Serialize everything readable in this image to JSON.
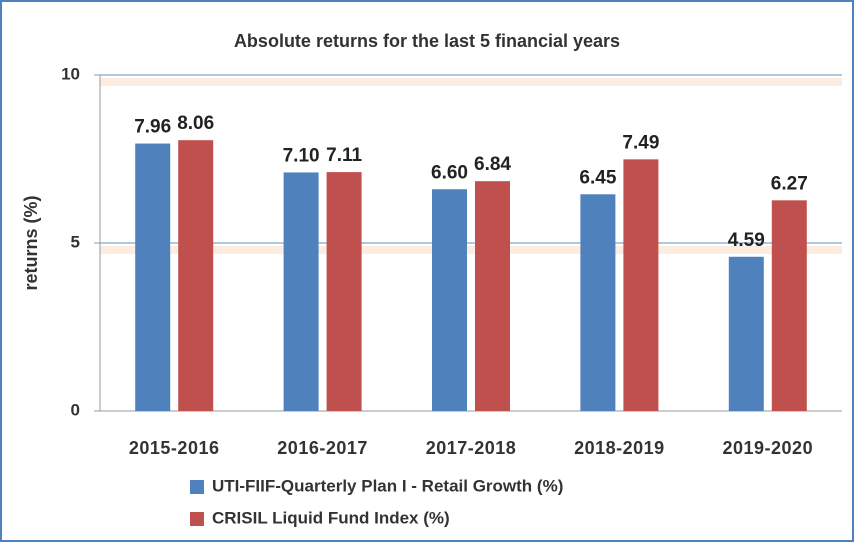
{
  "chart_data": {
    "type": "bar",
    "title": "Absolute returns for the last 5 financial years",
    "y_label": "returns (%)",
    "categories": [
      "2015-2016",
      "2016-2017",
      "2017-2018",
      "2018-2019",
      "2019-2020"
    ],
    "series": [
      {
        "name": "UTI-FIIF-Quarterly Plan I - Retail Growth (%)",
        "color": "#4f81bd",
        "values": [
          7.96,
          7.1,
          6.6,
          6.45,
          4.59
        ],
        "value_labels": [
          "7.96",
          "7.10",
          "6.60",
          "6.45",
          "4.59"
        ]
      },
      {
        "name": "CRISIL Liquid Fund Index (%)",
        "color": "#c0504d",
        "values": [
          8.06,
          7.11,
          6.84,
          7.49,
          6.27
        ],
        "value_labels": [
          "8.06",
          "7.11",
          "6.84",
          "7.49",
          "6.27"
        ]
      }
    ],
    "ylim": [
      0,
      10
    ],
    "yticks": [
      0,
      5,
      10
    ],
    "grid": true
  }
}
